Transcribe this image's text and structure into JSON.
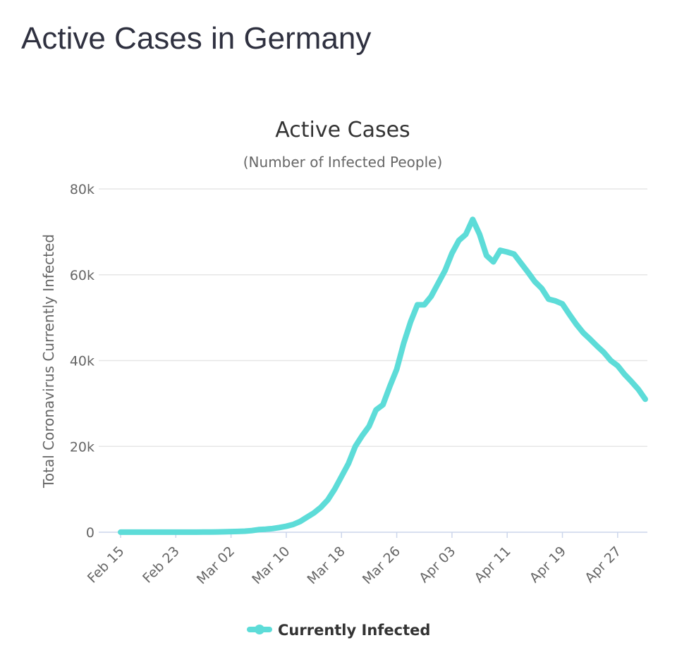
{
  "page": {
    "title": "Active Cases in Germany"
  },
  "chart_data": {
    "type": "line",
    "title": "Active Cases",
    "subtitle": "(Number of Infected People)",
    "ylabel": "Total Coronavirus Currently Infected",
    "xlabel": "",
    "ylim": [
      0,
      80000
    ],
    "y_ticks": [
      0,
      20000,
      40000,
      60000,
      80000
    ],
    "y_tick_labels": [
      "0",
      "20k",
      "40k",
      "60k",
      "80k"
    ],
    "x_tick_labels": [
      "Feb 15",
      "Feb 23",
      "Mar 02",
      "Mar 10",
      "Mar 18",
      "Mar 26",
      "Apr 03",
      "Apr 11",
      "Apr 19",
      "Apr 27"
    ],
    "x_tick_step": 8,
    "grid": true,
    "legend_position": "bottom-center",
    "categories": [
      "Feb 15",
      "Feb 16",
      "Feb 17",
      "Feb 18",
      "Feb 19",
      "Feb 20",
      "Feb 21",
      "Feb 22",
      "Feb 23",
      "Feb 24",
      "Feb 25",
      "Feb 26",
      "Feb 27",
      "Feb 28",
      "Feb 29",
      "Mar 01",
      "Mar 02",
      "Mar 03",
      "Mar 04",
      "Mar 05",
      "Mar 06",
      "Mar 07",
      "Mar 08",
      "Mar 09",
      "Mar 10",
      "Mar 11",
      "Mar 12",
      "Mar 13",
      "Mar 14",
      "Mar 15",
      "Mar 16",
      "Mar 17",
      "Mar 18",
      "Mar 19",
      "Mar 20",
      "Mar 21",
      "Mar 22",
      "Mar 23",
      "Mar 24",
      "Mar 25",
      "Mar 26",
      "Mar 27",
      "Mar 28",
      "Mar 29",
      "Mar 30",
      "Mar 31",
      "Apr 01",
      "Apr 02",
      "Apr 03",
      "Apr 04",
      "Apr 05",
      "Apr 06",
      "Apr 07",
      "Apr 08",
      "Apr 09",
      "Apr 10",
      "Apr 11",
      "Apr 12",
      "Apr 13",
      "Apr 14",
      "Apr 15",
      "Apr 16",
      "Apr 17",
      "Apr 18",
      "Apr 19",
      "Apr 20",
      "Apr 21",
      "Apr 22",
      "Apr 23",
      "Apr 24",
      "Apr 25",
      "Apr 26",
      "Apr 27",
      "Apr 28",
      "Apr 29",
      "Apr 30",
      "May 01"
    ],
    "series": [
      {
        "name": "Currently Infected",
        "color": "#5ddcd8",
        "values": [
          14,
          14,
          14,
          14,
          14,
          14,
          14,
          14,
          14,
          14,
          16,
          20,
          30,
          50,
          65,
          100,
          150,
          180,
          240,
          380,
          600,
          700,
          850,
          1100,
          1400,
          1800,
          2500,
          3500,
          4500,
          5800,
          7500,
          10000,
          13000,
          16000,
          20000,
          22500,
          24700,
          28500,
          29700,
          34000,
          38000,
          44000,
          49000,
          53000,
          53000,
          55000,
          58000,
          61000,
          65000,
          68000,
          69400,
          72900,
          69400,
          64500,
          63000,
          65700,
          65300,
          64800,
          62700,
          60600,
          58400,
          56800,
          54300,
          53900,
          53200,
          50800,
          48500,
          46500,
          45000,
          43400,
          41900,
          40000,
          38800,
          36800,
          35100,
          33300,
          31000
        ]
      }
    ]
  }
}
